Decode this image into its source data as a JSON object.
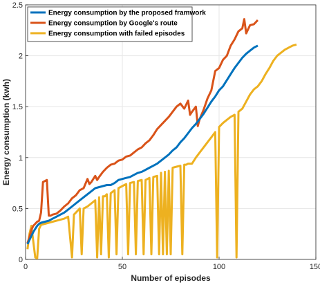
{
  "chart_data": {
    "type": "line",
    "xlabel": "Number of episodes",
    "ylabel": "Energy consumption (kwh)",
    "xlim": [
      0,
      150
    ],
    "ylim": [
      0,
      2.5
    ],
    "xticks": [
      0,
      50,
      100,
      150
    ],
    "yticks": [
      0,
      0.5,
      1,
      1.5,
      2,
      2.5
    ],
    "xtick_labels": [
      "0",
      "50",
      "100",
      "150"
    ],
    "ytick_labels": [
      "0",
      "0.5",
      "1",
      "1.5",
      "2",
      "2.5"
    ],
    "grid": true,
    "legend_position": "top-left",
    "series": [
      {
        "name": "Energy consumption by the proposed framwork",
        "color": "#0072BD",
        "x": [
          1,
          2,
          3,
          4,
          5,
          6,
          7,
          8,
          10,
          12,
          14,
          16,
          18,
          20,
          22,
          24,
          26,
          28,
          30,
          32,
          34,
          36,
          38,
          40,
          42,
          44,
          46,
          48,
          50,
          52,
          54,
          56,
          58,
          60,
          62,
          64,
          66,
          68,
          70,
          72,
          74,
          76,
          78,
          80,
          82,
          84,
          86,
          88,
          90,
          92,
          94,
          96,
          98,
          100,
          102,
          104,
          106,
          108,
          110,
          112,
          114,
          116,
          118,
          120
        ],
        "y": [
          0.15,
          0.19,
          0.23,
          0.27,
          0.3,
          0.33,
          0.35,
          0.36,
          0.37,
          0.38,
          0.4,
          0.42,
          0.44,
          0.46,
          0.49,
          0.52,
          0.55,
          0.58,
          0.61,
          0.64,
          0.67,
          0.7,
          0.71,
          0.72,
          0.73,
          0.73,
          0.75,
          0.78,
          0.79,
          0.8,
          0.81,
          0.83,
          0.85,
          0.86,
          0.88,
          0.9,
          0.92,
          0.94,
          0.97,
          1.0,
          1.03,
          1.07,
          1.1,
          1.15,
          1.19,
          1.24,
          1.29,
          1.33,
          1.38,
          1.43,
          1.49,
          1.55,
          1.6,
          1.66,
          1.7,
          1.76,
          1.82,
          1.88,
          1.93,
          1.98,
          2.02,
          2.05,
          2.08,
          2.1
        ]
      },
      {
        "name": "Energy consumption by Google's route",
        "color": "#D95319",
        "x": [
          1,
          2,
          3,
          4,
          5,
          6,
          7,
          8,
          9,
          10,
          11,
          12,
          13,
          14,
          16,
          18,
          20,
          22,
          24,
          26,
          28,
          30,
          32,
          33,
          34,
          36,
          37,
          38,
          40,
          42,
          44,
          46,
          48,
          50,
          52,
          54,
          56,
          58,
          60,
          62,
          64,
          66,
          68,
          70,
          72,
          74,
          76,
          78,
          80,
          82,
          84,
          85,
          86,
          88,
          89,
          90,
          92,
          94,
          96,
          98,
          100,
          102,
          104,
          106,
          108,
          110,
          112,
          113,
          114,
          116,
          118,
          119,
          120
        ],
        "y": [
          0.16,
          0.22,
          0.29,
          0.33,
          0.35,
          0.37,
          0.38,
          0.46,
          0.76,
          0.77,
          0.78,
          0.43,
          0.43,
          0.44,
          0.45,
          0.48,
          0.52,
          0.55,
          0.6,
          0.63,
          0.68,
          0.7,
          0.79,
          0.74,
          0.76,
          0.82,
          0.78,
          0.81,
          0.86,
          0.9,
          0.93,
          0.94,
          0.97,
          0.98,
          1.01,
          1.02,
          1.05,
          1.08,
          1.1,
          1.14,
          1.17,
          1.22,
          1.28,
          1.32,
          1.36,
          1.4,
          1.45,
          1.5,
          1.53,
          1.48,
          1.56,
          1.42,
          1.45,
          1.5,
          1.31,
          1.38,
          1.47,
          1.58,
          1.66,
          1.85,
          1.88,
          1.96,
          2.0,
          2.1,
          2.16,
          2.24,
          2.27,
          2.36,
          2.22,
          2.3,
          2.31,
          2.33,
          2.35
        ]
      },
      {
        "name": "Energy consumption with failed episodes",
        "color": "#EDB120",
        "x": [
          1,
          2,
          3,
          5,
          6,
          7,
          8,
          10,
          12,
          14,
          16,
          18,
          20,
          22,
          24,
          25,
          26,
          28,
          29,
          30,
          32,
          34,
          36,
          37,
          38,
          39,
          40,
          41,
          42,
          43,
          44,
          46,
          47,
          48,
          50,
          52,
          53,
          54,
          56,
          57,
          58,
          60,
          61,
          62,
          64,
          65,
          66,
          68,
          69,
          70,
          71,
          72,
          73,
          74,
          75,
          76,
          78,
          80,
          81,
          82,
          83,
          84,
          86,
          88,
          90,
          92,
          94,
          96,
          98,
          99,
          100,
          102,
          104,
          106,
          108,
          109,
          110,
          112,
          114,
          116,
          118,
          120,
          122,
          124,
          126,
          128,
          130,
          132,
          134,
          136,
          138,
          140
        ],
        "y": [
          0.1,
          0.25,
          0.33,
          0.02,
          0.01,
          0.3,
          0.34,
          0.35,
          0.36,
          0.37,
          0.38,
          0.39,
          0.4,
          0.42,
          0.02,
          0.44,
          0.46,
          0.5,
          0.05,
          0.5,
          0.52,
          0.55,
          0.58,
          0.02,
          0.61,
          0.05,
          0.62,
          0.62,
          0.64,
          0.02,
          0.65,
          0.68,
          0.05,
          0.7,
          0.72,
          0.74,
          0.05,
          0.75,
          0.76,
          0.05,
          0.77,
          0.78,
          0.05,
          0.78,
          0.8,
          0.05,
          0.81,
          0.82,
          0.05,
          0.85,
          0.05,
          0.86,
          0.05,
          0.87,
          0.05,
          0.9,
          0.91,
          0.92,
          0.05,
          0.93,
          0.93,
          0.94,
          0.94,
          1.0,
          1.05,
          1.1,
          1.15,
          1.2,
          1.25,
          0.02,
          1.3,
          1.34,
          1.37,
          1.4,
          1.42,
          0.02,
          1.45,
          1.48,
          1.55,
          1.62,
          1.67,
          1.7,
          1.75,
          1.82,
          1.88,
          1.95,
          2.0,
          2.03,
          2.06,
          2.08,
          2.1,
          2.11
        ]
      }
    ]
  }
}
